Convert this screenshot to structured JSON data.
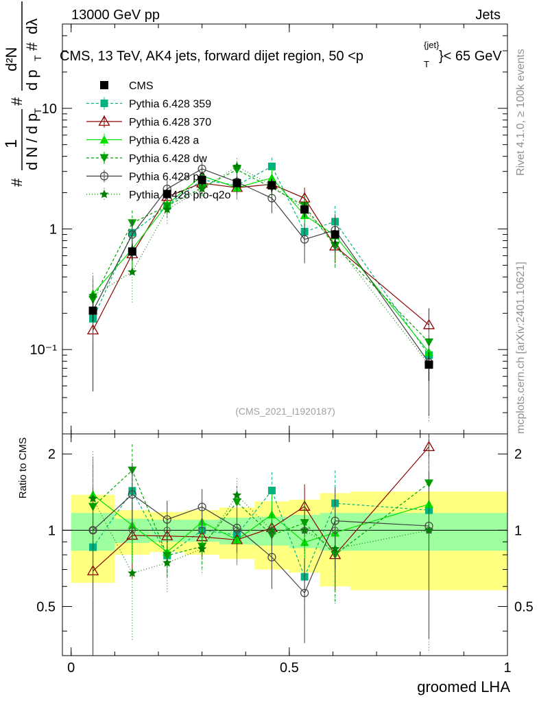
{
  "header": {
    "left": "13000 GeV pp",
    "right": "Jets"
  },
  "side_labels": {
    "rivet": "Rivet 4.1.0, ≥ 100k events",
    "mcplots": "mcplots.cern.ch [arXiv:2401.10621]"
  },
  "y_label_main": {
    "hash": "#",
    "one": "1",
    "dn": "d N / d p",
    "t": "T",
    "d2n": "d²N",
    "dpt": "d p",
    "dlambda": "dλ"
  },
  "y_label_ratio": "Ratio to CMS",
  "x_label": "groomed LHA",
  "watermark": "(CMS_2021_I1920187)",
  "colors": {
    "cms": "#000000",
    "p359": "#00b27f",
    "p370": "#8b0000",
    "pa": "#00e000",
    "pdw": "#00a000",
    "pp0": "#404040",
    "ppro": "#008000",
    "band_inner": "#9dff9d",
    "band_outer": "#ffff80"
  },
  "chart_data": {
    "type": "line",
    "title": "CMS, 13 TeV, AK4 jets, forward dijet region, 50 <p",
    "title_sub": "T",
    "title_sup": "{jet}",
    "title_end": "}< 65 GeV",
    "xlabel": "groomed LHA",
    "ylabel": "1/N dN/dp_T d²N/dp_T dλ",
    "xlim": [
      -0.02,
      1.0
    ],
    "ylim_main": [
      0.02,
      50
    ],
    "ylim_ratio": [
      0.32,
      2.4
    ],
    "x_ticks": [
      0,
      0.5,
      1
    ],
    "x_tick_labels": [
      "0",
      "0.5",
      "1"
    ],
    "y_ticks_main": [
      0.1,
      1,
      10
    ],
    "y_tick_labels_main": [
      "10⁻¹",
      "1",
      "10"
    ],
    "y_ticks_ratio": [
      0.5,
      1,
      2
    ],
    "y_tick_labels_ratio": [
      "0.5",
      "1",
      "2"
    ],
    "bins": [
      [
        0.0,
        0.1
      ],
      [
        0.1,
        0.18
      ],
      [
        0.18,
        0.26
      ],
      [
        0.26,
        0.34
      ],
      [
        0.34,
        0.42
      ],
      [
        0.42,
        0.5
      ],
      [
        0.5,
        0.57
      ],
      [
        0.57,
        0.64
      ],
      [
        0.64,
        1.0
      ]
    ],
    "x": [
      0.05,
      0.14,
      0.22,
      0.3,
      0.38,
      0.46,
      0.535,
      0.605,
      0.82
    ],
    "cms": {
      "name": "CMS",
      "values": [
        0.21,
        0.65,
        1.95,
        2.55,
        2.4,
        2.3,
        1.45,
        0.9,
        0.075
      ],
      "err_stat": [
        0.04,
        0.1,
        0.2,
        0.25,
        0.3,
        0.3,
        0.2,
        0.15,
        0.02
      ]
    },
    "band": {
      "inner": [
        0.17,
        0.11,
        0.1,
        0.1,
        0.12,
        0.13,
        0.15,
        0.17,
        0.17
      ],
      "outer": [
        0.38,
        0.2,
        0.18,
        0.2,
        0.23,
        0.3,
        0.32,
        0.4,
        0.42
      ]
    },
    "series": [
      {
        "name": "Pythia 6.428 359",
        "key": "p359",
        "marker": "square",
        "dash": "4,3",
        "values": [
          0.18,
          0.93,
          1.55,
          2.55,
          2.3,
          3.3,
          0.95,
          1.15,
          0.09
        ],
        "errors": [
          0.09,
          0.2,
          0.3,
          0.45,
          0.5,
          0.6,
          0.25,
          0.4,
          0.06
        ]
      },
      {
        "name": "Pythia 6.428 370",
        "key": "p370",
        "marker": "triangle-open",
        "dash": "",
        "values": [
          0.145,
          0.62,
          1.85,
          2.4,
          2.2,
          2.35,
          1.8,
          0.72,
          0.16
        ],
        "errors": [
          0.1,
          0.2,
          0.3,
          0.4,
          0.4,
          0.45,
          0.4,
          0.2,
          0.06
        ]
      },
      {
        "name": "Pythia 6.428 a",
        "key": "pa",
        "marker": "triangle",
        "dash": "",
        "values": [
          0.29,
          0.68,
          1.6,
          2.75,
          2.2,
          2.65,
          1.3,
          0.88,
          0.095
        ],
        "errors": [
          0.12,
          0.2,
          0.3,
          0.5,
          0.45,
          0.55,
          0.3,
          0.25,
          0.05
        ]
      },
      {
        "name": "Pythia 6.428 dw",
        "key": "pdw",
        "marker": "triangle-down",
        "dash": "4,3",
        "values": [
          0.26,
          1.12,
          1.55,
          2.2,
          3.1,
          2.2,
          1.55,
          0.72,
          0.115
        ],
        "errors": [
          0.12,
          0.3,
          0.3,
          0.4,
          0.5,
          0.45,
          0.35,
          0.25,
          0.06
        ]
      },
      {
        "name": "Pythia 6.428 p0",
        "key": "pp0",
        "marker": "circle-open",
        "dash": "",
        "values": [
          0.21,
          0.9,
          2.15,
          3.15,
          2.45,
          1.8,
          0.82,
          0.98,
          0.078
        ],
        "errors": [
          0.1,
          0.3,
          0.4,
          0.55,
          0.5,
          0.45,
          0.3,
          0.35,
          0.05
        ]
      },
      {
        "name": "Pythia 6.428 pro-q2o",
        "key": "ppro",
        "marker": "star",
        "dash": "1,3",
        "values": [
          0.28,
          0.44,
          1.45,
          2.15,
          3.3,
          2.3,
          1.45,
          0.76,
          0.075
        ],
        "errors": [
          0.15,
          0.2,
          0.35,
          0.45,
          0.55,
          0.5,
          0.4,
          0.3,
          0.05
        ]
      }
    ]
  }
}
